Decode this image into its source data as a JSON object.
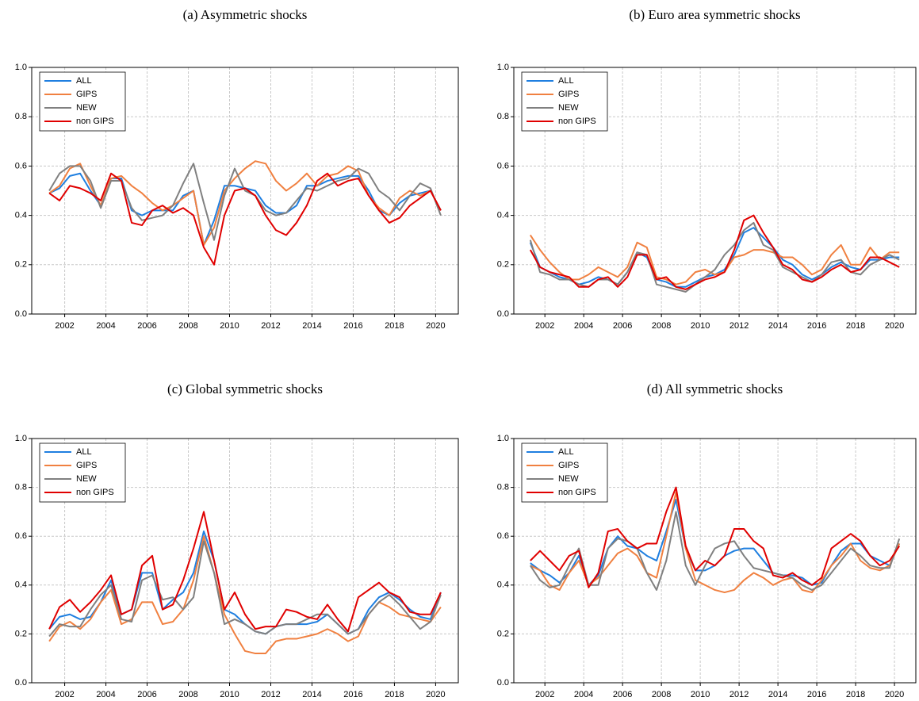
{
  "chart_data": [
    {
      "type": "line",
      "title": "(a) Asymmetric shocks",
      "x": [
        2001.25,
        2001.75,
        2002.25,
        2002.75,
        2003.25,
        2003.75,
        2004.25,
        2004.75,
        2005.25,
        2005.75,
        2006.25,
        2006.75,
        2007.25,
        2007.75,
        2008.25,
        2008.75,
        2009.25,
        2009.75,
        2010.25,
        2010.75,
        2011.25,
        2011.75,
        2012.25,
        2012.75,
        2013.25,
        2013.75,
        2014.25,
        2014.75,
        2015.25,
        2015.75,
        2016.25,
        2016.75,
        2017.25,
        2017.75,
        2018.25,
        2018.75,
        2019.25,
        2019.75,
        2020.25
      ],
      "series": [
        {
          "name": "ALL",
          "color": "#1f7fe0",
          "values": [
            0.49,
            0.51,
            0.56,
            0.57,
            0.5,
            0.44,
            0.55,
            0.55,
            0.42,
            0.4,
            0.42,
            0.42,
            0.42,
            0.48,
            0.5,
            0.28,
            0.38,
            0.52,
            0.52,
            0.51,
            0.5,
            0.44,
            0.41,
            0.41,
            0.44,
            0.52,
            0.52,
            0.54,
            0.55,
            0.56,
            0.56,
            0.5,
            0.42,
            0.4,
            0.45,
            0.48,
            0.49,
            0.5,
            0.42
          ]
        },
        {
          "name": "GIPS",
          "color": "#f08040",
          "values": [
            0.49,
            0.52,
            0.59,
            0.61,
            0.52,
            0.44,
            0.55,
            0.56,
            0.52,
            0.49,
            0.45,
            0.42,
            0.44,
            0.47,
            0.5,
            0.28,
            0.35,
            0.5,
            0.55,
            0.59,
            0.62,
            0.61,
            0.54,
            0.5,
            0.53,
            0.57,
            0.52,
            0.56,
            0.57,
            0.6,
            0.58,
            0.48,
            0.43,
            0.4,
            0.47,
            0.5,
            0.48,
            0.5,
            0.42
          ]
        },
        {
          "name": "NEW",
          "color": "#808080",
          "values": [
            0.5,
            0.57,
            0.6,
            0.6,
            0.54,
            0.43,
            0.54,
            0.54,
            0.43,
            0.38,
            0.39,
            0.4,
            0.44,
            0.53,
            0.61,
            0.45,
            0.3,
            0.48,
            0.59,
            0.5,
            0.48,
            0.42,
            0.4,
            0.41,
            0.46,
            0.51,
            0.5,
            0.52,
            0.54,
            0.55,
            0.59,
            0.57,
            0.5,
            0.47,
            0.42,
            0.48,
            0.53,
            0.51,
            0.4
          ]
        },
        {
          "name": "non GIPS",
          "color": "#e00000",
          "values": [
            0.49,
            0.46,
            0.52,
            0.51,
            0.49,
            0.46,
            0.57,
            0.54,
            0.37,
            0.36,
            0.42,
            0.44,
            0.41,
            0.43,
            0.4,
            0.27,
            0.2,
            0.4,
            0.5,
            0.51,
            0.48,
            0.4,
            0.34,
            0.32,
            0.37,
            0.44,
            0.54,
            0.57,
            0.52,
            0.54,
            0.55,
            0.48,
            0.42,
            0.37,
            0.39,
            0.44,
            0.47,
            0.5,
            0.42
          ]
        }
      ],
      "xlim": [
        2000.4,
        2021.1
      ],
      "ylim": [
        0,
        1
      ],
      "xticks": [
        2002,
        2004,
        2006,
        2008,
        2010,
        2012,
        2014,
        2016,
        2018,
        2020
      ],
      "yticks": [
        {
          "value": 0,
          "label": "0.0"
        },
        0.2,
        0.4,
        0.6,
        0.8,
        {
          "value": 1,
          "label": "1.0"
        }
      ],
      "grid": true,
      "legend": "upper left"
    },
    {
      "type": "line",
      "title": "(b) Euro area symmetric shocks",
      "x": [
        2001.25,
        2001.75,
        2002.25,
        2002.75,
        2003.25,
        2003.75,
        2004.25,
        2004.75,
        2005.25,
        2005.75,
        2006.25,
        2006.75,
        2007.25,
        2007.75,
        2008.25,
        2008.75,
        2009.25,
        2009.75,
        2010.25,
        2010.75,
        2011.25,
        2011.75,
        2012.25,
        2012.75,
        2013.25,
        2013.75,
        2014.25,
        2014.75,
        2015.25,
        2015.75,
        2016.25,
        2016.75,
        2017.25,
        2017.75,
        2018.25,
        2018.75,
        2019.25,
        2019.75,
        2020.25
      ],
      "series": [
        {
          "name": "ALL",
          "color": "#1f7fe0",
          "values": [
            0.29,
            0.19,
            0.17,
            0.15,
            0.14,
            0.12,
            0.13,
            0.15,
            0.14,
            0.12,
            0.17,
            0.25,
            0.23,
            0.14,
            0.13,
            0.11,
            0.11,
            0.13,
            0.15,
            0.16,
            0.18,
            0.24,
            0.33,
            0.35,
            0.31,
            0.27,
            0.22,
            0.2,
            0.16,
            0.14,
            0.16,
            0.19,
            0.21,
            0.19,
            0.18,
            0.22,
            0.22,
            0.23,
            0.23
          ]
        },
        {
          "name": "GIPS",
          "color": "#f08040",
          "values": [
            0.32,
            0.26,
            0.21,
            0.17,
            0.14,
            0.14,
            0.16,
            0.19,
            0.17,
            0.15,
            0.19,
            0.29,
            0.27,
            0.15,
            0.14,
            0.12,
            0.13,
            0.17,
            0.18,
            0.16,
            0.17,
            0.23,
            0.24,
            0.26,
            0.26,
            0.25,
            0.23,
            0.23,
            0.2,
            0.16,
            0.18,
            0.24,
            0.28,
            0.2,
            0.2,
            0.27,
            0.22,
            0.25,
            0.25
          ]
        },
        {
          "name": "NEW",
          "color": "#808080",
          "values": [
            0.3,
            0.17,
            0.16,
            0.14,
            0.14,
            0.12,
            0.11,
            0.14,
            0.14,
            0.12,
            0.17,
            0.25,
            0.24,
            0.12,
            0.11,
            0.1,
            0.09,
            0.12,
            0.15,
            0.18,
            0.24,
            0.28,
            0.34,
            0.37,
            0.28,
            0.26,
            0.19,
            0.17,
            0.15,
            0.13,
            0.16,
            0.21,
            0.22,
            0.17,
            0.16,
            0.2,
            0.22,
            0.24,
            0.22
          ]
        },
        {
          "name": "non GIPS",
          "color": "#e00000",
          "values": [
            0.26,
            0.19,
            0.17,
            0.16,
            0.15,
            0.11,
            0.11,
            0.14,
            0.15,
            0.11,
            0.15,
            0.24,
            0.24,
            0.14,
            0.15,
            0.11,
            0.1,
            0.12,
            0.14,
            0.15,
            0.17,
            0.26,
            0.38,
            0.4,
            0.33,
            0.27,
            0.2,
            0.18,
            0.14,
            0.13,
            0.15,
            0.18,
            0.2,
            0.17,
            0.18,
            0.23,
            0.23,
            0.21,
            0.19
          ]
        }
      ],
      "xlim": [
        2000.4,
        2021.1
      ],
      "ylim": [
        0,
        1
      ],
      "xticks": [
        2002,
        2004,
        2006,
        2008,
        2010,
        2012,
        2014,
        2016,
        2018,
        2020
      ],
      "yticks": [
        {
          "value": 0,
          "label": "0.0"
        },
        0.2,
        0.4,
        0.6,
        0.8,
        {
          "value": 1,
          "label": "1.0"
        }
      ],
      "grid": true,
      "legend": "upper left"
    },
    {
      "type": "line",
      "title": "(c) Global symmetric shocks",
      "x": [
        2001.25,
        2001.75,
        2002.25,
        2002.75,
        2003.25,
        2003.75,
        2004.25,
        2004.75,
        2005.25,
        2005.75,
        2006.25,
        2006.75,
        2007.25,
        2007.75,
        2008.25,
        2008.75,
        2009.25,
        2009.75,
        2010.25,
        2010.75,
        2011.25,
        2011.75,
        2012.25,
        2012.75,
        2013.25,
        2013.75,
        2014.25,
        2014.75,
        2015.25,
        2015.75,
        2016.25,
        2016.75,
        2017.25,
        2017.75,
        2018.25,
        2018.75,
        2019.25,
        2019.75,
        2020.25
      ],
      "series": [
        {
          "name": "ALL",
          "color": "#1f7fe0",
          "values": [
            0.22,
            0.27,
            0.28,
            0.26,
            0.27,
            0.33,
            0.42,
            0.28,
            0.3,
            0.45,
            0.45,
            0.3,
            0.34,
            0.37,
            0.45,
            0.62,
            0.5,
            0.3,
            0.28,
            0.24,
            0.21,
            0.2,
            0.23,
            0.24,
            0.24,
            0.24,
            0.25,
            0.28,
            0.24,
            0.2,
            0.22,
            0.3,
            0.35,
            0.37,
            0.34,
            0.3,
            0.27,
            0.26,
            0.37
          ]
        },
        {
          "name": "GIPS",
          "color": "#f08040",
          "values": [
            0.17,
            0.23,
            0.25,
            0.22,
            0.26,
            0.33,
            0.38,
            0.24,
            0.26,
            0.33,
            0.33,
            0.24,
            0.25,
            0.3,
            0.42,
            0.6,
            0.45,
            0.28,
            0.2,
            0.13,
            0.12,
            0.12,
            0.17,
            0.18,
            0.18,
            0.19,
            0.2,
            0.22,
            0.2,
            0.17,
            0.19,
            0.28,
            0.33,
            0.31,
            0.28,
            0.27,
            0.26,
            0.25,
            0.31
          ]
        },
        {
          "name": "NEW",
          "color": "#808080",
          "values": [
            0.19,
            0.24,
            0.23,
            0.23,
            0.3,
            0.36,
            0.4,
            0.26,
            0.25,
            0.42,
            0.44,
            0.34,
            0.35,
            0.3,
            0.35,
            0.58,
            0.45,
            0.24,
            0.26,
            0.24,
            0.21,
            0.2,
            0.23,
            0.24,
            0.24,
            0.26,
            0.28,
            0.28,
            0.24,
            0.2,
            0.22,
            0.28,
            0.33,
            0.36,
            0.32,
            0.27,
            0.22,
            0.25,
            0.36
          ]
        },
        {
          "name": "non GIPS",
          "color": "#e00000",
          "values": [
            0.22,
            0.31,
            0.34,
            0.29,
            0.33,
            0.38,
            0.44,
            0.28,
            0.3,
            0.48,
            0.52,
            0.3,
            0.32,
            0.42,
            0.55,
            0.7,
            0.5,
            0.3,
            0.37,
            0.28,
            0.22,
            0.23,
            0.23,
            0.3,
            0.29,
            0.27,
            0.26,
            0.32,
            0.26,
            0.21,
            0.35,
            0.38,
            0.41,
            0.37,
            0.35,
            0.29,
            0.28,
            0.28,
            0.37
          ]
        }
      ],
      "xlim": [
        2000.4,
        2021.1
      ],
      "ylim": [
        0,
        1
      ],
      "xticks": [
        2002,
        2004,
        2006,
        2008,
        2010,
        2012,
        2014,
        2016,
        2018,
        2020
      ],
      "yticks": [
        {
          "value": 0,
          "label": "0.0"
        },
        0.2,
        0.4,
        0.6,
        0.8,
        {
          "value": 1,
          "label": "1.0"
        }
      ],
      "grid": true,
      "legend": "upper left"
    },
    {
      "type": "line",
      "title": "(d) All symmetric shocks",
      "x": [
        2001.25,
        2001.75,
        2002.25,
        2002.75,
        2003.25,
        2003.75,
        2004.25,
        2004.75,
        2005.25,
        2005.75,
        2006.25,
        2006.75,
        2007.25,
        2007.75,
        2008.25,
        2008.75,
        2009.25,
        2009.75,
        2010.25,
        2010.75,
        2011.25,
        2011.75,
        2012.25,
        2012.75,
        2013.25,
        2013.75,
        2014.25,
        2014.75,
        2015.25,
        2015.75,
        2016.25,
        2016.75,
        2017.25,
        2017.75,
        2018.25,
        2018.75,
        2019.25,
        2019.75,
        2020.25
      ],
      "series": [
        {
          "name": "ALL",
          "color": "#1f7fe0",
          "values": [
            0.49,
            0.46,
            0.44,
            0.41,
            0.45,
            0.52,
            0.4,
            0.44,
            0.55,
            0.6,
            0.56,
            0.55,
            0.52,
            0.5,
            0.62,
            0.75,
            0.55,
            0.46,
            0.46,
            0.48,
            0.52,
            0.54,
            0.55,
            0.55,
            0.5,
            0.45,
            0.44,
            0.44,
            0.43,
            0.4,
            0.41,
            0.48,
            0.54,
            0.57,
            0.57,
            0.52,
            0.5,
            0.48,
            0.57
          ]
        },
        {
          "name": "GIPS",
          "color": "#f08040",
          "values": [
            0.48,
            0.46,
            0.4,
            0.38,
            0.45,
            0.5,
            0.4,
            0.43,
            0.48,
            0.53,
            0.55,
            0.52,
            0.45,
            0.43,
            0.6,
            0.78,
            0.55,
            0.42,
            0.4,
            0.38,
            0.37,
            0.38,
            0.42,
            0.45,
            0.43,
            0.4,
            0.42,
            0.43,
            0.38,
            0.37,
            0.42,
            0.48,
            0.52,
            0.57,
            0.5,
            0.47,
            0.46,
            0.48,
            0.57
          ]
        },
        {
          "name": "NEW",
          "color": "#808080",
          "values": [
            0.48,
            0.42,
            0.39,
            0.4,
            0.48,
            0.55,
            0.4,
            0.4,
            0.55,
            0.59,
            0.58,
            0.55,
            0.45,
            0.38,
            0.5,
            0.7,
            0.48,
            0.4,
            0.48,
            0.55,
            0.57,
            0.58,
            0.52,
            0.47,
            0.46,
            0.45,
            0.44,
            0.43,
            0.4,
            0.38,
            0.4,
            0.45,
            0.5,
            0.55,
            0.52,
            0.48,
            0.47,
            0.47,
            0.59
          ]
        },
        {
          "name": "non GIPS",
          "color": "#e00000",
          "values": [
            0.5,
            0.54,
            0.5,
            0.46,
            0.52,
            0.54,
            0.39,
            0.45,
            0.62,
            0.63,
            0.58,
            0.55,
            0.57,
            0.57,
            0.7,
            0.8,
            0.56,
            0.46,
            0.5,
            0.48,
            0.52,
            0.63,
            0.63,
            0.58,
            0.55,
            0.44,
            0.43,
            0.45,
            0.42,
            0.4,
            0.43,
            0.55,
            0.58,
            0.61,
            0.58,
            0.52,
            0.48,
            0.5,
            0.56
          ]
        }
      ],
      "xlim": [
        2000.4,
        2021.1
      ],
      "ylim": [
        0,
        1
      ],
      "xticks": [
        2002,
        2004,
        2006,
        2008,
        2010,
        2012,
        2014,
        2016,
        2018,
        2020
      ],
      "yticks": [
        {
          "value": 0,
          "label": "0.0"
        },
        0.2,
        0.4,
        0.6,
        0.8,
        {
          "value": 1,
          "label": "1.0"
        }
      ],
      "grid": true,
      "legend": "upper left"
    }
  ]
}
